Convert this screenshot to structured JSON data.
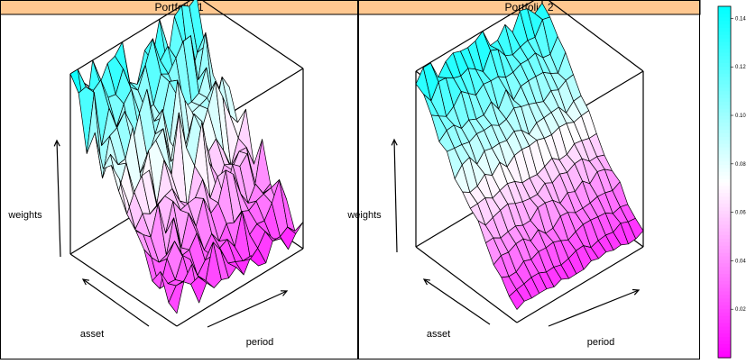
{
  "chart_data": [
    {
      "type": "surface",
      "panel": "Portfolio 1",
      "xlabel": "asset",
      "ylabel": "period",
      "zlabel": "weights",
      "zlim": [
        0,
        0.145
      ],
      "n_assets": 14,
      "n_periods": 18,
      "surface_shape": "left assets weighted ~0.10-0.14, dropping to ~0.01-0.04 on right assets, very noisy across periods"
    },
    {
      "type": "surface",
      "panel": "Portfolio 2",
      "xlabel": "asset",
      "ylabel": "period",
      "zlabel": "weights",
      "zlim": [
        0,
        0.145
      ],
      "n_assets": 14,
      "n_periods": 18,
      "surface_shape": "smooth; back assets ~0.12-0.14 decreasing steadily to ~0.01-0.03 in front, low noise across periods"
    }
  ],
  "colorkey": {
    "ticks": [
      "0.02",
      "0.04",
      "0.06",
      "0.08",
      "0.10",
      "0.12",
      "0.14"
    ],
    "tick_values": [
      0.02,
      0.04,
      0.06,
      0.08,
      0.1,
      0.12,
      0.14
    ],
    "range": [
      0,
      0.145
    ],
    "low_color": "#ff00ff",
    "high_color": "#00ffff"
  },
  "strip_colors": {
    "background": "#ffc890",
    "fill": "#ff7f00"
  }
}
